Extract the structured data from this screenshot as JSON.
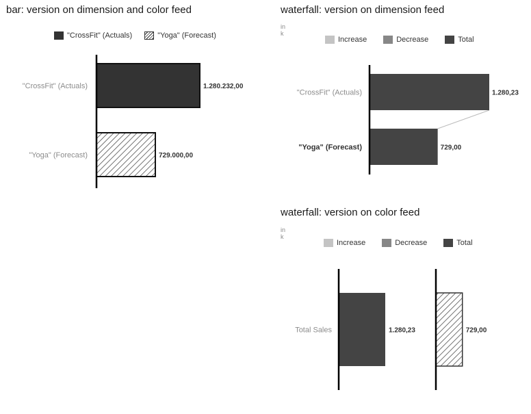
{
  "chart_data": [
    {
      "type": "bar",
      "title": "bar: version on dimension and color feed",
      "legend": [
        {
          "name": "\"CrossFit\" (Actuals)",
          "color": "#333333",
          "pattern": "solid"
        },
        {
          "name": "\"Yoga\" (Forecast)",
          "color": "#ffffff",
          "pattern": "hatched"
        }
      ],
      "categories": [
        "\"CrossFit\" (Actuals)",
        "\"Yoga\" (Forecast)"
      ],
      "values": [
        1280232,
        729000
      ],
      "value_labels": [
        "1.280.232,00",
        "729.000,00"
      ],
      "xlim": [
        0,
        1300000
      ]
    },
    {
      "type": "bar",
      "subtype": "waterfall",
      "title": "waterfall: version on dimension feed",
      "unit": "in k",
      "legend": [
        {
          "name": "Increase",
          "color": "#c4c4c4"
        },
        {
          "name": "Decrease",
          "color": "#878787"
        },
        {
          "name": "Total",
          "color": "#444444"
        }
      ],
      "categories": [
        "\"CrossFit\" (Actuals)",
        "\"Yoga\" (Forecast)"
      ],
      "values": [
        1280.23,
        729.0
      ],
      "value_labels": [
        "1.280,23",
        "729,00"
      ],
      "xlim": [
        0,
        1300
      ]
    },
    {
      "type": "bar",
      "subtype": "waterfall",
      "title": "waterfall: version on color feed",
      "unit": "in k",
      "legend": [
        {
          "name": "Increase",
          "color": "#c4c4c4"
        },
        {
          "name": "Decrease",
          "color": "#878787"
        },
        {
          "name": "Total",
          "color": "#444444"
        }
      ],
      "categories": [
        "Total Sales"
      ],
      "series": [
        {
          "values": [
            1280.23
          ],
          "color": "#444444",
          "pattern": "solid"
        },
        {
          "values": [
            729.0
          ],
          "color": "#ffffff",
          "pattern": "hatched"
        }
      ],
      "value_labels": [
        "1.280,23",
        "729,00"
      ],
      "xlim": [
        0,
        1300
      ]
    }
  ]
}
